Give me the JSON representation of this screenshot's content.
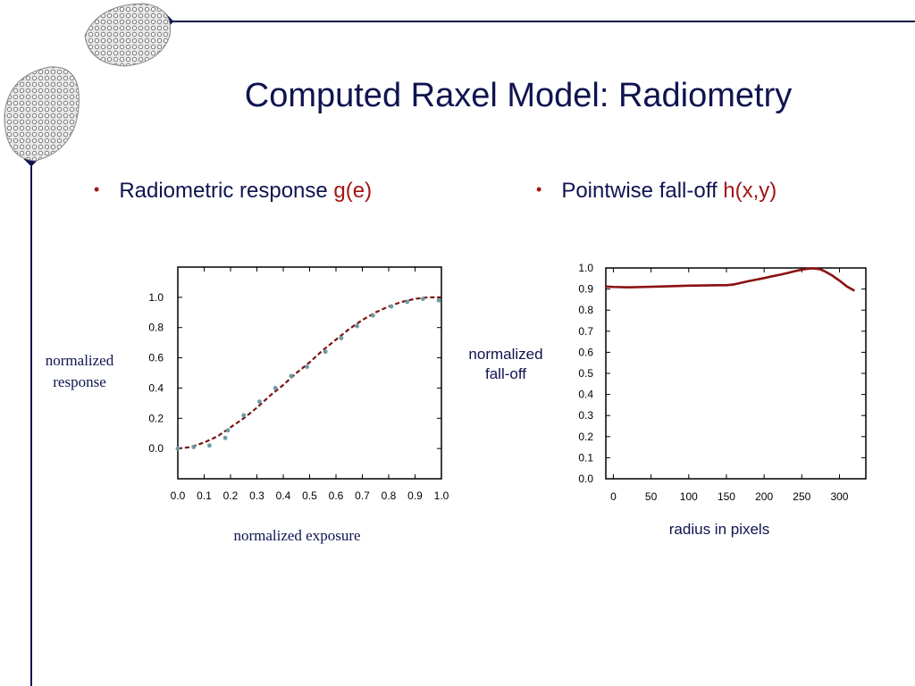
{
  "slide": {
    "title": "Computed Raxel Model: Radiometry",
    "bullets": [
      {
        "text": "Radiometric response ",
        "highlight": "g(e)"
      },
      {
        "text": "Pointwise fall-off ",
        "highlight": "h(x,y)"
      }
    ],
    "colors": {
      "accent": "#a31515",
      "text": "#0f1450",
      "points": "#6a9aa2"
    }
  },
  "chart_data": [
    {
      "type": "scatter",
      "xlabel": "normalized exposure",
      "ylabel": "normalized response",
      "xlim": [
        0.0,
        1.0
      ],
      "ylim": [
        -0.2,
        1.2
      ],
      "xticks": [
        "0.0",
        "0.1",
        "0.2",
        "0.3",
        "0.4",
        "0.5",
        "0.6",
        "0.7",
        "0.8",
        "0.9",
        "1.0"
      ],
      "yticks": [
        "0.0",
        "0.2",
        "0.4",
        "0.6",
        "0.8",
        "1.0"
      ],
      "series": [
        {
          "type": "scatter",
          "x": [
            0.0,
            0.06,
            0.12,
            0.18,
            0.19,
            0.25,
            0.31,
            0.37,
            0.43,
            0.49,
            0.56,
            0.62,
            0.68,
            0.74,
            0.81,
            0.87,
            0.93,
            0.99
          ],
          "y": [
            0.0,
            0.01,
            0.02,
            0.07,
            0.12,
            0.22,
            0.31,
            0.4,
            0.48,
            0.54,
            0.64,
            0.73,
            0.81,
            0.88,
            0.94,
            0.97,
            0.99,
            0.98
          ]
        },
        {
          "type": "line",
          "x": [
            0.0,
            0.05,
            0.1,
            0.15,
            0.2,
            0.25,
            0.3,
            0.35,
            0.4,
            0.45,
            0.5,
            0.55,
            0.6,
            0.65,
            0.7,
            0.75,
            0.8,
            0.85,
            0.9,
            0.95,
            1.0
          ],
          "y": [
            0.0,
            0.01,
            0.04,
            0.08,
            0.14,
            0.2,
            0.27,
            0.35,
            0.42,
            0.5,
            0.57,
            0.65,
            0.72,
            0.79,
            0.85,
            0.9,
            0.94,
            0.97,
            0.99,
            1.0,
            1.0
          ]
        }
      ]
    },
    {
      "type": "line",
      "xlabel": "radius in pixels",
      "ylabel": "normalized\nfall-off",
      "xlim": [
        -10,
        335
      ],
      "ylim": [
        0.0,
        1.0
      ],
      "xticks": [
        "0",
        "50",
        "100",
        "150",
        "200",
        "250",
        "300"
      ],
      "yticks": [
        "0.0",
        "0.1",
        "0.2",
        "0.3",
        "0.4",
        "0.5",
        "0.6",
        "0.7",
        "0.8",
        "0.9",
        "1.0"
      ],
      "series": [
        {
          "x": [
            -10,
            0,
            20,
            40,
            60,
            80,
            100,
            120,
            140,
            150,
            160,
            170,
            180,
            190,
            200,
            210,
            220,
            230,
            240,
            250,
            255,
            260,
            265,
            270,
            275,
            280,
            290,
            300,
            310,
            320
          ],
          "y": [
            0.912,
            0.91,
            0.908,
            0.91,
            0.912,
            0.914,
            0.916,
            0.917,
            0.918,
            0.918,
            0.922,
            0.93,
            0.938,
            0.945,
            0.952,
            0.96,
            0.967,
            0.975,
            0.984,
            0.992,
            0.995,
            0.997,
            0.998,
            0.996,
            0.993,
            0.985,
            0.965,
            0.94,
            0.912,
            0.892
          ]
        }
      ]
    }
  ]
}
